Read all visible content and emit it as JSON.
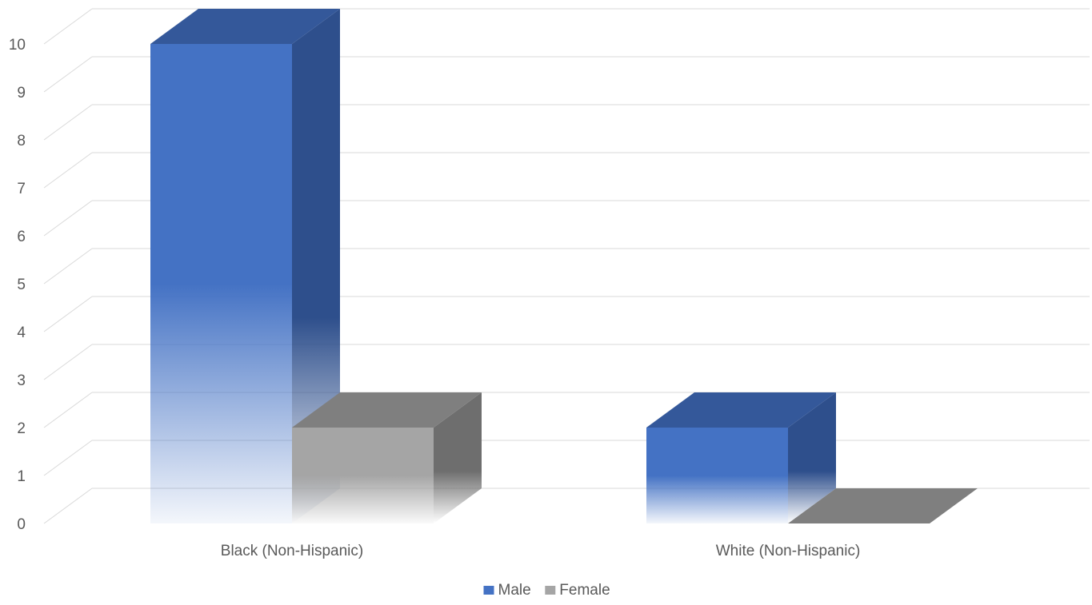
{
  "chart_data": {
    "type": "bar",
    "style": "3d-clustered-column",
    "categories": [
      "Black (Non-Hispanic)",
      "White (Non-Hispanic)"
    ],
    "series": [
      {
        "name": "Male",
        "values": [
          10,
          2
        ],
        "color": "#4472C4",
        "side_color": "#2E4F8C",
        "top_color": "#34589A"
      },
      {
        "name": "Female",
        "values": [
          2,
          0
        ],
        "color": "#A5A5A5",
        "side_color": "#6E6E6E",
        "top_color": "#7F7F7F"
      }
    ],
    "title": "",
    "xlabel": "",
    "ylabel": "",
    "ylim": [
      0,
      10
    ],
    "yticks": [
      "0",
      "1",
      "2",
      "3",
      "4",
      "5",
      "6",
      "7",
      "8",
      "9",
      "10"
    ],
    "grid": true,
    "legend": "bottom-center"
  }
}
